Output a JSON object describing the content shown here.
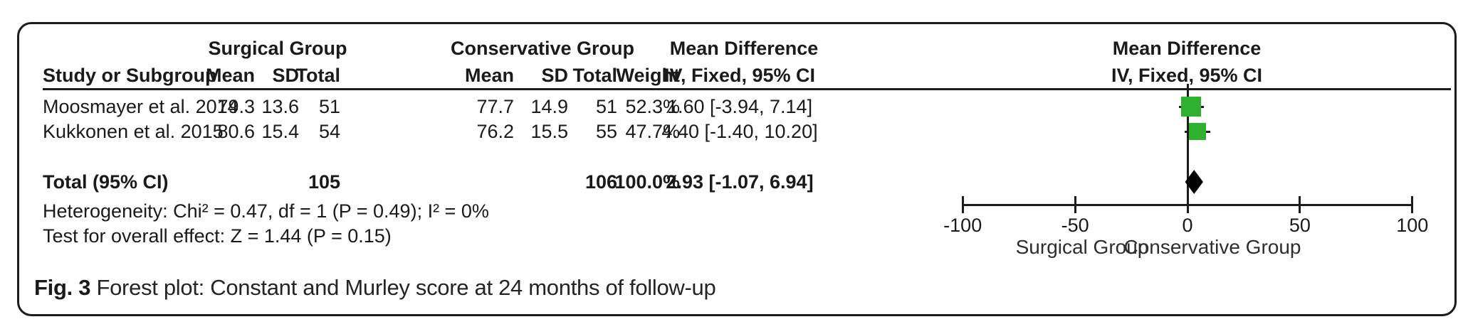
{
  "figure": {
    "caption_label": "Fig. 3",
    "caption_text": "Forest plot: Constant and Murley score at 24 months of follow-up"
  },
  "table": {
    "group_headers": {
      "surgical": "Surgical Group",
      "conservative": "Conservative Group",
      "mean_difference_left": "Mean Difference",
      "mean_difference_right": "Mean Difference"
    },
    "column_headers": {
      "study": "Study or Subgroup",
      "surgical_mean": "Mean",
      "surgical_sd": "SD",
      "surgical_total": "Total",
      "conservative_mean": "Mean",
      "conservative_sd": "SD",
      "conservative_total": "Total",
      "weight": "Weight",
      "ci_left": "IV, Fixed, 95% CI",
      "ci_right": "IV, Fixed, 95% CI"
    }
  },
  "chart_data": {
    "type": "forest",
    "effect_measure": "Mean Difference",
    "model": "IV, Fixed, 95% CI",
    "studies": [
      {
        "label": "Moosmayer et al. 2014",
        "surgical_mean": "79.3",
        "surgical_sd": "13.6",
        "surgical_total": "51",
        "conservative_mean": "77.7",
        "conservative_sd": "14.9",
        "conservative_total": "51",
        "weight": "52.3%",
        "md": 1.6,
        "ci_low": -3.94,
        "ci_high": 7.14,
        "ci_text": "1.60 [-3.94, 7.14]"
      },
      {
        "label": "Kukkonen et al. 2015",
        "surgical_mean": "80.6",
        "surgical_sd": "15.4",
        "surgical_total": "54",
        "conservative_mean": "76.2",
        "conservative_sd": "15.5",
        "conservative_total": "55",
        "weight": "47.7%",
        "md": 4.4,
        "ci_low": -1.4,
        "ci_high": 10.2,
        "ci_text": "4.40 [-1.40, 10.20]"
      }
    ],
    "total": {
      "label": "Total (95% CI)",
      "surgical_total": "105",
      "conservative_total": "106",
      "weight": "100.0%",
      "md": 2.93,
      "ci_low": -1.07,
      "ci_high": 6.94,
      "ci_text": "2.93 [-1.07, 6.94]"
    },
    "heterogeneity": "Heterogeneity: Chi² = 0.47, df = 1 (P = 0.49); I² = 0%",
    "overall_effect": "Test for overall effect: Z = 1.44 (P = 0.15)",
    "axis": {
      "min": -100,
      "max": 100,
      "ticks": [
        -100,
        -50,
        0,
        50,
        100
      ],
      "label_left": "Surgical Group",
      "label_right": "Conservative Group"
    },
    "colors": {
      "marker": "#2EB12E",
      "diamond": "#000000",
      "line": "#1c1c1c"
    }
  }
}
